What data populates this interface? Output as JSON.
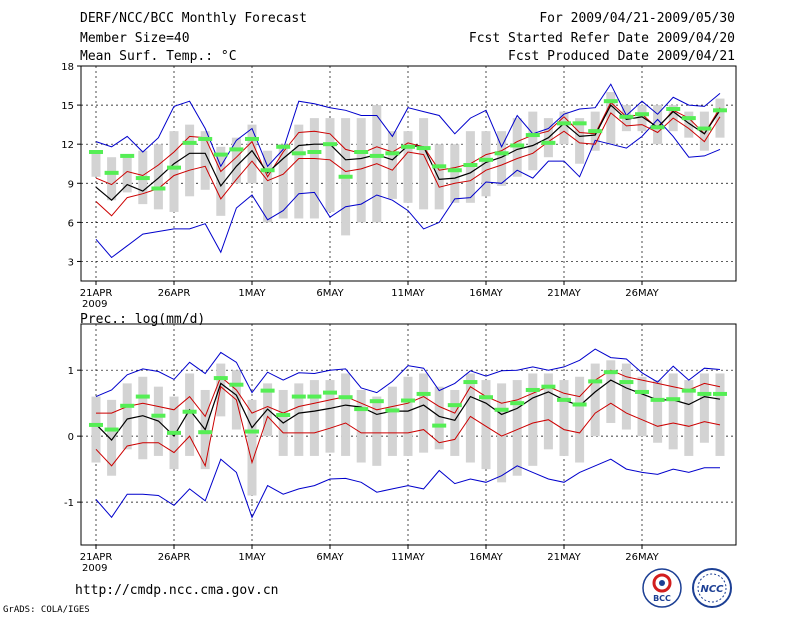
{
  "header": {
    "left": [
      "DERF/NCC/BCC Monthly Forecast",
      "Member Size=40",
      "Mean Surf. Temp.: °C"
    ],
    "right": [
      "For 2009/04/21-2009/05/30",
      "Fcst Started Refer Date 2009/04/20",
      "Fcst Produced Date 2009/04/21"
    ]
  },
  "footer": {
    "url": "http://cmdp.ncc.cma.gov.cn",
    "credit": "GrADS: COLA/IGES",
    "logo1_label": "BCC",
    "logo2_label": "NCC"
  },
  "colors": {
    "max_min": "#0000cc",
    "mean": "#000000",
    "spread": "#cc0000",
    "box": "#d3d3d3",
    "obs": "#55ee55"
  },
  "chart_data": [
    {
      "type": "line",
      "title": "Mean Surf. Temp.: °C",
      "x_ticks": [
        "21APR",
        "26APR",
        "1MAY",
        "6MAY",
        "11MAY",
        "16MAY",
        "21MAY",
        "26MAY"
      ],
      "year_label": "2009",
      "ylim": [
        1.5,
        18
      ],
      "y_ticks": [
        3,
        6,
        9,
        12,
        15,
        18
      ],
      "grid": true,
      "series": [
        {
          "name": "max",
          "values": [
            12.2,
            11.8,
            12.6,
            11.4,
            12.5,
            14.9,
            15.3,
            13.2,
            10.3,
            12.3,
            13.2,
            10.3,
            11.6,
            15.3,
            15.1,
            14.8,
            14.6,
            14.2,
            14.2,
            12.6,
            14.8,
            14.5,
            14.2,
            12.8,
            14.0,
            14.6,
            11.8,
            14.2,
            12.8,
            13.2,
            14.3,
            14.7,
            14.8,
            16.6,
            14.2,
            15.3,
            14.3,
            15.6,
            15.0,
            14.9,
            15.9
          ]
        },
        {
          "name": "upper",
          "values": [
            9.4,
            8.9,
            9.9,
            9.6,
            10.4,
            11.4,
            12.6,
            12.5,
            9.9,
            11.0,
            12.2,
            9.5,
            11.4,
            12.9,
            13.0,
            12.8,
            11.6,
            11.3,
            11.8,
            11.4,
            12.1,
            11.8,
            10.0,
            10.2,
            10.5,
            11.2,
            11.5,
            12.2,
            12.7,
            13.0,
            14.1,
            12.9,
            12.8,
            15.2,
            14.1,
            14.3,
            13.2,
            14.6,
            14.0,
            12.8,
            14.8
          ]
        },
        {
          "name": "mean",
          "values": [
            8.7,
            7.7,
            8.9,
            8.4,
            9.4,
            10.5,
            11.3,
            11.3,
            8.8,
            10.3,
            11.5,
            9.8,
            10.9,
            11.9,
            12.0,
            12.0,
            10.8,
            10.9,
            11.2,
            10.8,
            11.9,
            11.8,
            9.3,
            9.4,
            9.8,
            10.6,
            11.0,
            11.6,
            11.9,
            12.5,
            13.6,
            12.6,
            12.7,
            15.0,
            13.9,
            14.1,
            13.3,
            14.5,
            13.6,
            12.8,
            14.6
          ]
        },
        {
          "name": "lower",
          "values": [
            7.6,
            6.5,
            7.9,
            8.2,
            8.6,
            9.6,
            10.0,
            10.3,
            7.8,
            9.3,
            10.7,
            9.2,
            9.7,
            10.9,
            10.9,
            10.8,
            9.9,
            10.1,
            10.5,
            10.0,
            11.4,
            11.2,
            8.7,
            9.0,
            9.2,
            10.0,
            10.4,
            10.9,
            11.3,
            12.2,
            13.0,
            12.1,
            12.0,
            14.4,
            13.4,
            13.5,
            12.9,
            14.0,
            13.2,
            12.2,
            14.1
          ]
        },
        {
          "name": "min",
          "values": [
            4.7,
            3.3,
            4.2,
            5.1,
            5.3,
            5.5,
            5.5,
            5.9,
            3.7,
            7.1,
            8.1,
            6.2,
            6.9,
            8.2,
            8.3,
            6.4,
            7.2,
            7.4,
            8.1,
            7.7,
            6.9,
            5.5,
            6.0,
            7.8,
            7.9,
            9.1,
            9.0,
            10.0,
            9.4,
            10.7,
            10.7,
            9.5,
            12.3,
            12.0,
            11.7,
            12.6,
            13.9,
            12.6,
            11.0,
            11.1,
            11.6
          ]
        },
        {
          "name": "box_high",
          "values": [
            11.5,
            11.0,
            11.0,
            11.5,
            12.0,
            13.0,
            13.5,
            13.0,
            11.8,
            12.5,
            13.5,
            11.5,
            12.0,
            13.5,
            14.0,
            14.0,
            14.0,
            14.0,
            15.0,
            13.0,
            13.0,
            14.0,
            12.0,
            12.0,
            13.0,
            13.0,
            13.0,
            14.0,
            14.5,
            14.0,
            14.5,
            14.0,
            14.5,
            16.0,
            15.0,
            15.0,
            15.0,
            15.0,
            14.5,
            14.5,
            15.5
          ]
        },
        {
          "name": "box_low",
          "values": [
            9.5,
            7.7,
            8.3,
            7.4,
            7.0,
            6.8,
            8.0,
            8.5,
            6.5,
            9.0,
            9.0,
            6.0,
            6.3,
            6.3,
            6.3,
            6.8,
            5.0,
            6.0,
            6.0,
            7.8,
            7.5,
            7.0,
            7.0,
            7.5,
            7.5,
            8.0,
            8.8,
            9.5,
            10.0,
            11.0,
            12.0,
            10.5,
            11.5,
            12.0,
            13.0,
            13.0,
            12.0,
            13.0,
            12.5,
            11.5,
            12.5
          ]
        },
        {
          "name": "observed",
          "values": [
            11.4,
            9.8,
            11.1,
            9.4,
            8.6,
            10.2,
            12.1,
            12.4,
            11.2,
            11.6,
            12.4,
            10.0,
            11.8,
            11.3,
            11.4,
            12.0,
            9.5,
            11.4,
            11.1,
            11.3,
            11.8,
            11.7,
            10.3,
            10.0,
            10.4,
            10.8,
            11.3,
            11.9,
            12.7,
            12.1,
            13.6,
            13.6,
            13.0,
            15.3,
            14.1,
            14.3,
            13.3,
            14.7,
            14.0,
            13.2,
            14.6
          ]
        }
      ]
    },
    {
      "type": "line",
      "title": "Prec.: log(mm/d)",
      "x_ticks": [
        "21APR",
        "26APR",
        "1MAY",
        "6MAY",
        "11MAY",
        "16MAY",
        "21MAY",
        "26MAY"
      ],
      "year_label": "2009",
      "ylim": [
        -1.65,
        1.7
      ],
      "y_ticks": [
        -1,
        0,
        1
      ],
      "grid": true,
      "series": [
        {
          "name": "max",
          "values": [
            0.6,
            0.7,
            0.93,
            1.02,
            0.98,
            0.86,
            1.12,
            0.95,
            1.27,
            1.12,
            0.66,
            0.97,
            0.85,
            0.96,
            0.95,
            1.0,
            1.02,
            0.73,
            0.66,
            0.83,
            1.07,
            1.03,
            0.69,
            0.8,
            0.99,
            0.91,
            0.99,
            1.0,
            1.05,
            1.0,
            1.05,
            1.15,
            1.32,
            1.19,
            1.17,
            0.96,
            0.82,
            1.06,
            0.85,
            1.03,
            1.01
          ]
        },
        {
          "name": "upper",
          "values": [
            0.35,
            0.35,
            0.45,
            0.5,
            0.45,
            0.4,
            0.6,
            0.3,
            0.9,
            0.7,
            0.35,
            0.45,
            0.35,
            0.45,
            0.5,
            0.55,
            0.6,
            0.5,
            0.4,
            0.45,
            0.5,
            0.6,
            0.45,
            0.35,
            0.75,
            0.6,
            0.5,
            0.55,
            0.65,
            0.75,
            0.65,
            0.6,
            0.85,
            1.0,
            0.9,
            0.85,
            0.8,
            0.75,
            0.7,
            0.8,
            0.75
          ]
        },
        {
          "name": "mean",
          "values": [
            0.18,
            -0.06,
            0.26,
            0.31,
            0.23,
            0.0,
            0.4,
            0.1,
            0.8,
            0.62,
            0.13,
            0.41,
            0.2,
            0.35,
            0.38,
            0.42,
            0.47,
            0.44,
            0.33,
            0.38,
            0.38,
            0.47,
            0.3,
            0.24,
            0.6,
            0.5,
            0.33,
            0.42,
            0.58,
            0.67,
            0.55,
            0.46,
            0.67,
            0.85,
            0.73,
            0.64,
            0.55,
            0.55,
            0.48,
            0.6,
            0.56
          ]
        },
        {
          "name": "lower",
          "values": [
            -0.2,
            -0.45,
            -0.15,
            -0.1,
            -0.1,
            -0.25,
            0.0,
            -0.45,
            0.75,
            0.55,
            -0.4,
            0.3,
            0.05,
            0.05,
            0.05,
            0.12,
            0.2,
            0.05,
            0.05,
            0.05,
            0.05,
            0.1,
            -0.1,
            -0.05,
            0.3,
            0.15,
            0.0,
            0.1,
            0.2,
            0.25,
            0.1,
            0.05,
            0.35,
            0.5,
            0.35,
            0.25,
            0.15,
            0.2,
            0.15,
            0.22,
            0.17
          ]
        },
        {
          "name": "min",
          "values": [
            -0.96,
            -1.23,
            -0.88,
            -0.88,
            -0.9,
            -1.05,
            -0.8,
            -0.98,
            -0.35,
            -0.55,
            -1.23,
            -0.75,
            -0.88,
            -0.8,
            -0.75,
            -0.65,
            -0.64,
            -0.7,
            -0.85,
            -0.8,
            -0.75,
            -0.8,
            -0.52,
            -0.72,
            -0.65,
            -0.7,
            -0.6,
            -0.45,
            -0.55,
            -0.65,
            -0.7,
            -0.55,
            -0.45,
            -0.35,
            -0.5,
            -0.55,
            -0.58,
            -0.5,
            -0.55,
            -0.48,
            -0.48
          ]
        },
        {
          "name": "box_high",
          "values": [
            0.6,
            0.55,
            0.8,
            0.9,
            0.75,
            0.6,
            0.95,
            0.7,
            1.1,
            1.0,
            0.55,
            0.8,
            0.7,
            0.8,
            0.85,
            0.85,
            0.95,
            0.7,
            0.6,
            0.75,
            0.9,
            0.95,
            0.75,
            0.7,
            0.95,
            0.85,
            0.8,
            0.85,
            0.95,
            0.95,
            0.85,
            0.9,
            1.1,
            1.15,
            1.1,
            0.9,
            0.85,
            0.95,
            0.85,
            0.95,
            0.95
          ]
        },
        {
          "name": "box_low",
          "values": [
            -0.4,
            -0.6,
            -0.2,
            -0.35,
            -0.3,
            -0.5,
            -0.3,
            -0.5,
            0.3,
            0.1,
            -0.9,
            0.0,
            -0.3,
            -0.3,
            -0.3,
            -0.25,
            -0.3,
            -0.4,
            -0.45,
            -0.3,
            -0.3,
            -0.25,
            -0.2,
            -0.3,
            -0.4,
            -0.5,
            -0.7,
            -0.6,
            -0.45,
            -0.2,
            -0.3,
            -0.4,
            0.0,
            0.2,
            0.1,
            0.0,
            -0.1,
            -0.2,
            -0.3,
            -0.1,
            -0.3
          ]
        },
        {
          "name": "observed",
          "values": [
            0.17,
            0.1,
            0.46,
            0.6,
            0.31,
            0.05,
            0.37,
            0.06,
            0.88,
            0.78,
            0.07,
            0.69,
            0.32,
            0.6,
            0.6,
            0.66,
            0.59,
            0.41,
            0.53,
            0.39,
            0.54,
            0.64,
            0.16,
            0.47,
            0.82,
            0.59,
            0.4,
            0.5,
            0.7,
            0.75,
            0.55,
            0.48,
            0.83,
            0.97,
            0.82,
            0.67,
            0.55,
            0.56,
            0.69,
            0.64,
            0.64
          ]
        }
      ]
    }
  ]
}
